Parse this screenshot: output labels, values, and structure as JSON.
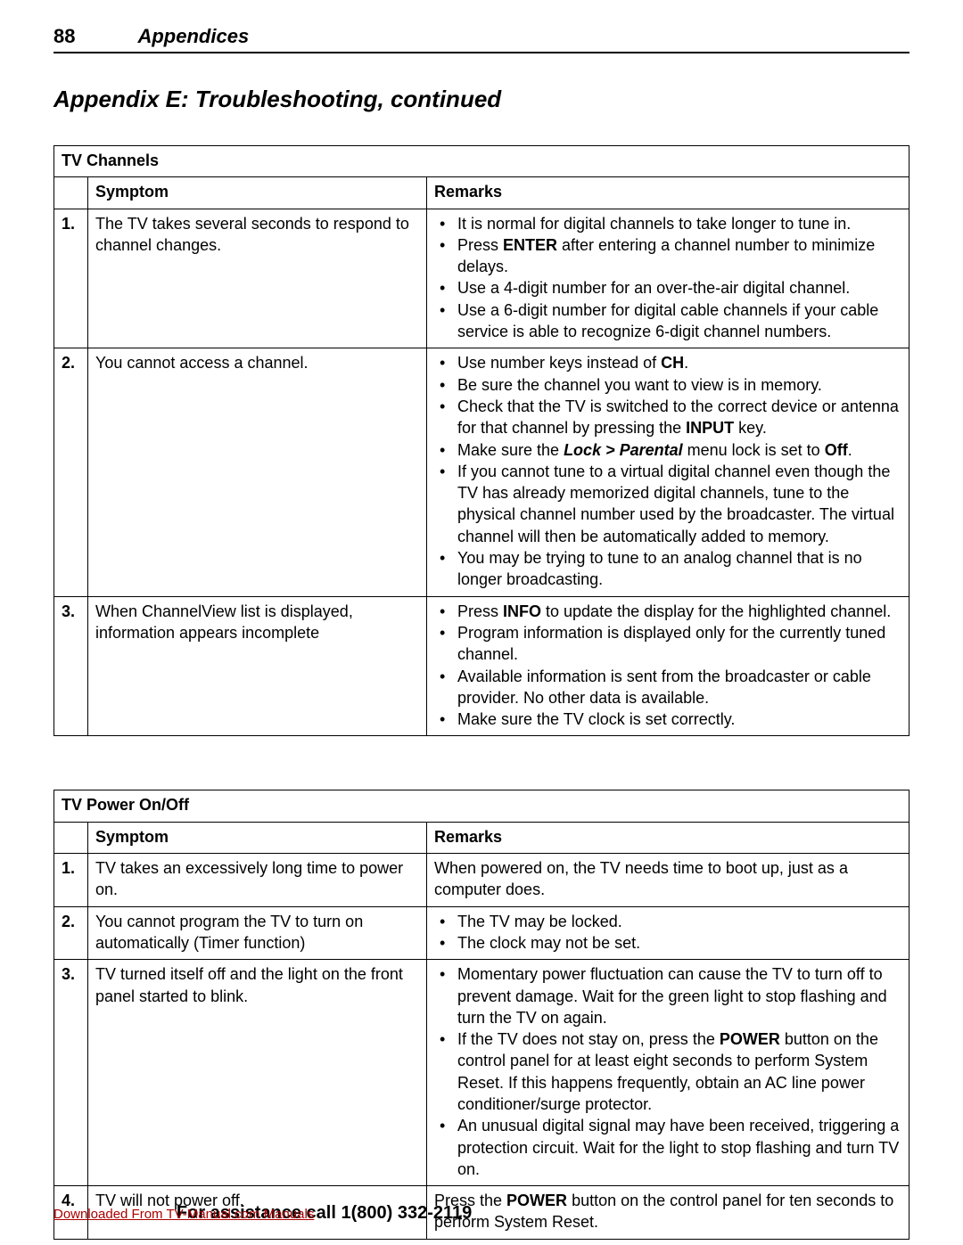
{
  "header": {
    "page_number": "88",
    "section": "Appendices"
  },
  "title": "Appendix E:  Troubleshooting, continued",
  "tables": [
    {
      "title": "TV Channels",
      "col_symptom": "Symptom",
      "col_remarks": "Remarks",
      "rows": [
        {
          "num": "1.",
          "symptom": "The TV takes several seconds to respond to channel changes.",
          "remarks_html": "<ul><li>It is normal for digital channels to take longer to tune in.</li><li>Press <span class='b'>ENTER</span> after entering a channel number to minimize delays.</li><li>Use a 4-digit number for an over-the-air digital channel.</li><li>Use a 6-digit number for digital cable channels if your cable service is able to recognize 6-digit channel numbers.</li></ul>"
        },
        {
          "num": "2.",
          "symptom": "You cannot access a channel.",
          "remarks_html": "<ul><li>Use number keys instead of <span class='b'>CH</span>.</li><li>Be sure the channel you want to view is in memory.</li><li>Check that the TV is switched to the correct device or antenna for that channel by pressing the <span class='b'>INPUT</span> key.</li><li>Make sure the <span class='bi'>Lock &gt; Parental</span> menu lock is set to <span class='b'>Off</span>.</li><li>If you cannot tune to a virtual digital channel even though the TV has already memorized digital channels, tune to the physical channel number used by the broadcaster.  The virtual channel will then be automatically added to memory.</li><li>You may be trying to tune to an analog channel that is no longer broadcasting.</li></ul>"
        },
        {
          "num": "3.",
          "symptom": "When ChannelView list is displayed, information appears incomplete",
          "remarks_html": "<ul><li>Press <span class='b'>INFO</span> to update the display for the highlighted channel.</li><li>Program information is displayed only for the currently tuned channel.</li><li>Available information is sent from the broadcaster or cable provider.  No other data is available.</li><li>Make sure the TV clock is set correctly.</li></ul>"
        }
      ]
    },
    {
      "title": "TV Power On/Off",
      "col_symptom": "Symptom",
      "col_remarks": "Remarks",
      "rows": [
        {
          "num": "1.",
          "symptom": "TV takes an excessively long time to power on.",
          "remarks_html": "When powered on, the TV needs time to boot up, just as a computer does."
        },
        {
          "num": "2.",
          "symptom": "You cannot program the TV to turn on automatically (Timer function)",
          "remarks_html": "<ul><li>The TV may be locked.</li><li>The clock may not be set.</li></ul>"
        },
        {
          "num": "3.",
          "symptom": "TV turned itself off and the light on the front panel started to blink.",
          "remarks_html": "<ul><li>Momentary power fluctuation can cause the TV to turn off to prevent damage.  Wait for the green light to stop flashing and turn the TV on again.</li><li> If the TV does not stay on, press the <span class='b'>POWER</span> button on the control panel for at least eight seconds to perform System Reset.  If this happens frequently, obtain an AC line power conditioner/surge protector.</li><li>An unusual digital signal may have been received, triggering a protection circuit.  Wait for the light to stop flashing and turn TV on.</li></ul>"
        },
        {
          "num": "4.",
          "symptom": "TV will not power off.",
          "remarks_html": "Press the <span class='b'>POWER</span> button on the control panel for ten seconds to perform System Reset."
        }
      ]
    }
  ],
  "footer": {
    "download_text": "Downloaded From TV-Manual.com Manuals",
    "assist_text": "For assistance call 1(800) 332-2119"
  }
}
